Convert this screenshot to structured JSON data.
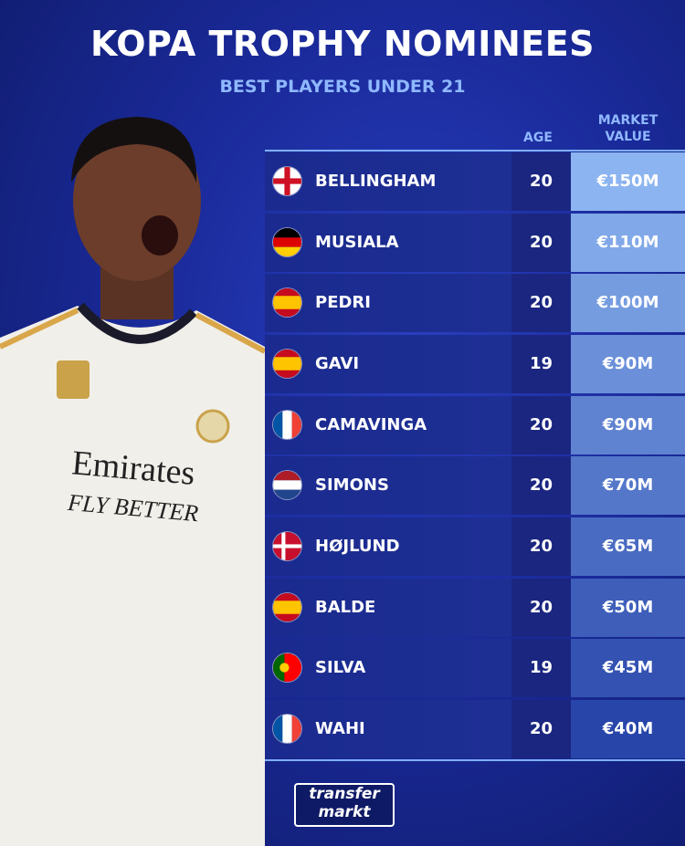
{
  "header": {
    "title": "KOPA TROPHY NOMINEES",
    "subtitle": "BEST PLAYERS UNDER 21"
  },
  "table": {
    "columns": [
      "AGE",
      "MARKET VALUE"
    ],
    "rows": [
      {
        "player": "BELLINGHAM",
        "age": 20,
        "market_value": "€150M"
      },
      {
        "player": "MUSIALA",
        "age": 20,
        "market_value": "€110M"
      },
      {
        "player": "PEDRI",
        "age": 20,
        "market_value": "€100M"
      },
      {
        "player": "GAVI",
        "age": 19,
        "market_value": "€90M"
      },
      {
        "player": "CAMAVINGA",
        "age": 20,
        "market_value": "€90M"
      },
      {
        "player": "SIMONS",
        "age": 20,
        "market_value": "€70M"
      },
      {
        "player": "HØJLUND",
        "age": 20,
        "market_value": "€65M"
      },
      {
        "player": "BALDE",
        "age": 20,
        "market_value": "€50M"
      },
      {
        "player": "SILVA",
        "age": 19,
        "market_value": "€45M"
      },
      {
        "player": "WAHI",
        "age": 20,
        "market_value": "€40M"
      }
    ]
  },
  "logo": {
    "line1": "transfer",
    "line2": "markt"
  }
}
